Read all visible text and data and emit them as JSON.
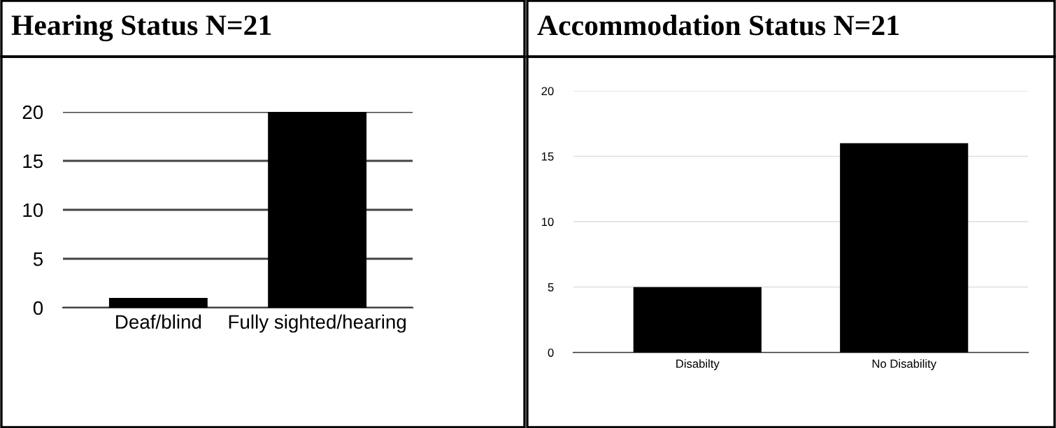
{
  "chart_data": [
    {
      "type": "bar",
      "title": "Hearing Status N=21",
      "categories": [
        "Deaf/blind",
        "Fully sighted/hearing"
      ],
      "values": [
        1,
        20
      ],
      "color": "#000000",
      "ylim": [
        0,
        20
      ],
      "yticks": [
        0,
        5,
        10,
        15,
        20
      ],
      "grid": "y"
    },
    {
      "type": "bar",
      "title": "Accommodation Status N=21",
      "categories": [
        "Disabilty",
        "No Disability"
      ],
      "values": [
        5,
        16
      ],
      "color": "#000000",
      "ylim": [
        0,
        20
      ],
      "yticks": [
        0,
        5,
        10,
        15,
        20
      ],
      "grid": "y"
    }
  ]
}
